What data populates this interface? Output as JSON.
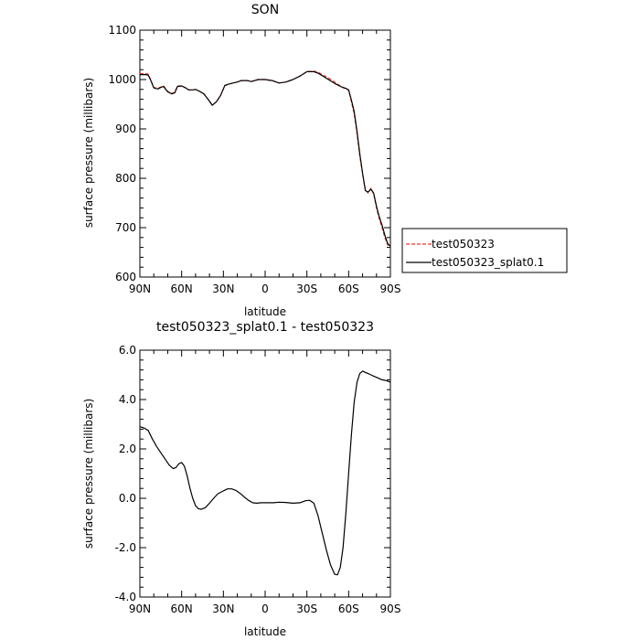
{
  "chart_data": [
    {
      "type": "line",
      "title": "SON",
      "xlabel": "latitude",
      "ylabel": "surface pressure (millibars)",
      "xlim": [
        90,
        -90
      ],
      "ylim": [
        600,
        1100
      ],
      "x_ticks": [
        {
          "value": 90,
          "label": "90N"
        },
        {
          "value": 60,
          "label": "60N"
        },
        {
          "value": 30,
          "label": "30N"
        },
        {
          "value": 0,
          "label": "0"
        },
        {
          "value": -30,
          "label": "30S"
        },
        {
          "value": -60,
          "label": "60S"
        },
        {
          "value": -90,
          "label": "90S"
        }
      ],
      "y_ticks": [
        {
          "value": 600,
          "label": "600"
        },
        {
          "value": 700,
          "label": "700"
        },
        {
          "value": 800,
          "label": "800"
        },
        {
          "value": 900,
          "label": "900"
        },
        {
          "value": 1000,
          "label": "1000"
        },
        {
          "value": 1100,
          "label": "1100"
        }
      ],
      "legend_position": "right",
      "series": [
        {
          "name": "test050323",
          "color": "#e8382e",
          "dash": "dashed",
          "x": [
            90,
            86,
            84,
            82,
            80,
            77,
            75,
            73,
            70,
            67,
            65,
            63,
            60,
            57,
            55,
            52,
            50,
            47,
            44,
            41,
            38,
            35,
            32,
            29,
            26,
            23,
            20,
            17,
            13,
            10,
            5,
            0,
            -5,
            -10,
            -15,
            -20,
            -25,
            -30,
            -35,
            -38,
            -41,
            -45,
            -50,
            -55,
            -58,
            -60,
            -62,
            -64,
            -66,
            -68,
            -70,
            -72,
            -74,
            -76,
            -78,
            -80,
            -82,
            -84,
            -86,
            -88,
            -90
          ],
          "y": [
            1012,
            1012,
            1011,
            998,
            984,
            982,
            985,
            987,
            976,
            972,
            974,
            987,
            987,
            983,
            979,
            979,
            980,
            976,
            971,
            960,
            948,
            955,
            968,
            988,
            991,
            993,
            995,
            998,
            998,
            996,
            1000,
            1000,
            998,
            993,
            995,
            1000,
            1007,
            1016,
            1017,
            1015,
            1010,
            1004,
            995,
            985,
            981,
            979,
            955,
            930,
            890,
            845,
            808,
            778,
            770,
            780,
            768,
            740,
            718,
            700,
            680,
            665,
            662
          ]
        },
        {
          "name": "test050323_splat0.1",
          "color": "#000000",
          "dash": "solid",
          "x": [
            90,
            86,
            84,
            82,
            80,
            77,
            75,
            73,
            70,
            67,
            65,
            63,
            60,
            57,
            55,
            52,
            50,
            47,
            44,
            41,
            38,
            35,
            32,
            29,
            26,
            23,
            20,
            17,
            13,
            10,
            5,
            0,
            -5,
            -10,
            -15,
            -20,
            -25,
            -30,
            -35,
            -38,
            -41,
            -45,
            -50,
            -55,
            -58,
            -60,
            -62,
            -64,
            -66,
            -68,
            -70,
            -72,
            -74,
            -76,
            -78,
            -80,
            -82,
            -84,
            -86,
            -88,
            -90
          ],
          "y": [
            1010,
            1010,
            1009,
            997,
            983,
            981,
            984,
            986,
            975,
            971,
            973,
            986,
            987,
            983,
            979,
            979,
            980,
            976,
            971,
            960,
            948,
            955,
            968,
            988,
            991,
            993,
            995,
            998,
            998,
            996,
            1000,
            1000,
            998,
            993,
            995,
            1000,
            1007,
            1016,
            1016,
            1013,
            1008,
            1001,
            992,
            985,
            982,
            979,
            958,
            935,
            895,
            850,
            810,
            775,
            772,
            778,
            770,
            743,
            722,
            705,
            685,
            668,
            662
          ]
        }
      ]
    },
    {
      "type": "line",
      "title": "test050323_splat0.1 - test050323",
      "xlabel": "latitude",
      "ylabel": "surface pressure (millibars)",
      "xlim": [
        90,
        -90
      ],
      "ylim": [
        -4.0,
        6.0
      ],
      "x_ticks": [
        {
          "value": 90,
          "label": "90N"
        },
        {
          "value": 60,
          "label": "60N"
        },
        {
          "value": 30,
          "label": "30N"
        },
        {
          "value": 0,
          "label": "0"
        },
        {
          "value": -30,
          "label": "30S"
        },
        {
          "value": -60,
          "label": "60S"
        },
        {
          "value": -90,
          "label": "90S"
        }
      ],
      "y_ticks": [
        {
          "value": -4,
          "label": "-4.0"
        },
        {
          "value": -2,
          "label": "-2.0"
        },
        {
          "value": 0,
          "label": "0.0"
        },
        {
          "value": 2,
          "label": "2.0"
        },
        {
          "value": 4,
          "label": "4.0"
        },
        {
          "value": 6,
          "label": "6.0"
        }
      ],
      "series": [
        {
          "name": "",
          "color": "#000000",
          "dash": "solid",
          "x": [
            90,
            87,
            84,
            81,
            78,
            75,
            72,
            69,
            66,
            64,
            62,
            60,
            58,
            56,
            54,
            52,
            50,
            48,
            46,
            43,
            40,
            37,
            34,
            30,
            27,
            24,
            21,
            18,
            15,
            12,
            9,
            6,
            3,
            0,
            -3,
            -6,
            -10,
            -15,
            -20,
            -25,
            -29,
            -32,
            -35,
            -38,
            -41,
            -44,
            -47,
            -50,
            -52,
            -54,
            -56,
            -58,
            -60,
            -62,
            -64,
            -66,
            -68,
            -70,
            -72,
            -74,
            -76,
            -78,
            -80,
            -82,
            -84,
            -86,
            -88,
            -90
          ],
          "y": [
            2.9,
            2.85,
            2.75,
            2.4,
            2.1,
            1.85,
            1.6,
            1.35,
            1.2,
            1.25,
            1.4,
            1.45,
            1.3,
            0.9,
            0.4,
            0.0,
            -0.3,
            -0.42,
            -0.45,
            -0.38,
            -0.2,
            0.0,
            0.18,
            0.3,
            0.38,
            0.38,
            0.32,
            0.2,
            0.05,
            -0.08,
            -0.18,
            -0.2,
            -0.18,
            -0.18,
            -0.18,
            -0.18,
            -0.16,
            -0.17,
            -0.2,
            -0.18,
            -0.1,
            -0.08,
            -0.2,
            -0.7,
            -1.4,
            -2.1,
            -2.7,
            -3.08,
            -3.1,
            -2.8,
            -2.0,
            -0.6,
            1.0,
            2.6,
            3.9,
            4.7,
            5.05,
            5.15,
            5.1,
            5.05,
            5.0,
            4.95,
            4.9,
            4.85,
            4.8,
            4.78,
            4.75,
            4.7
          ]
        }
      ]
    }
  ]
}
